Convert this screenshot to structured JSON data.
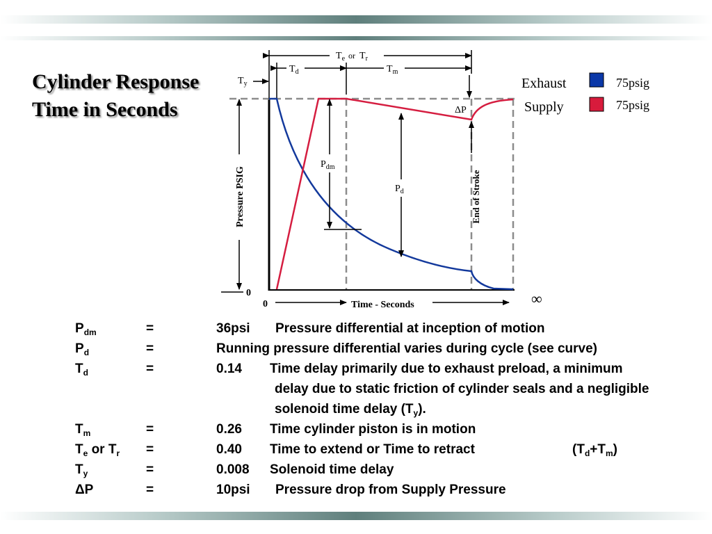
{
  "title": {
    "line1": "Cylinder Response",
    "line2": "Time in Seconds"
  },
  "diagram": {
    "legend": [
      {
        "label": "Exhaust",
        "value": "75psig",
        "color": "#0b38a8"
      },
      {
        "label": "Supply",
        "value": "75psig",
        "color": "#d81b3c"
      }
    ],
    "y_axis_label": "Pressure PSIG",
    "x_axis_label": "Time - Seconds",
    "origin_y": "0",
    "origin_x": "0",
    "infinity": "∞",
    "end_of_stroke": "End of Stroke",
    "te": "T",
    "te_sub": "e",
    "or": "or",
    "tr": "T",
    "tr_sub": "r",
    "td": "T",
    "td_sub": "d",
    "tm": "T",
    "tm_sub": "m",
    "ty": "T",
    "ty_sub": "y",
    "pdm": "P",
    "pdm_sub": "dm",
    "pd": "P",
    "pd_sub": "d",
    "delta_p": "ΔP"
  },
  "definitions": [
    {
      "sym": "P",
      "sub": "dm",
      "eq": "=",
      "val": "36psi",
      "desc": "Pressure differential at inception of motion",
      "desc_offset": 288
    },
    {
      "sym": "P",
      "sub": "d",
      "eq": "=",
      "val": "",
      "desc": "Running pressure differential varies during cycle (see curve)",
      "desc_offset": 203
    },
    {
      "sym": "T",
      "sub": "d",
      "eq": "=",
      "val": "0.14",
      "desc": "Time delay primarily due to exhaust preload, a minimum",
      "desc_offset": 280
    },
    {
      "cont": true,
      "desc": "delay due to static friction of cylinder seals and a negligible",
      "desc_offset": 287
    },
    {
      "cont": true,
      "desc": "solenoid time delay (T",
      "desc_sub": "y",
      "desc_tail": ").",
      "desc_offset": 287
    },
    {
      "sym": "T",
      "sub": "m",
      "eq": "=",
      "val": "0.26",
      "desc": "Time cylinder piston is in motion",
      "desc_offset": 280
    },
    {
      "sym": "T",
      "sub": "e",
      "sym_mid": " or T",
      "sub2": "r",
      "eq": "=",
      "val": "0.40",
      "desc": "Time to extend or Time to retract",
      "desc_offset": 280,
      "extra": "(T",
      "extra_sub1": "d",
      "extra_mid": "+T",
      "extra_sub2": "m",
      "extra_tail": ")"
    },
    {
      "sym": "T",
      "sub": "y",
      "eq": "=",
      "val": "0.008",
      "desc": "Solenoid time delay",
      "desc_offset": 280
    },
    {
      "sym": "ΔP",
      "sub": "",
      "eq": "=",
      "val": "10psi",
      "desc": "Pressure drop from Supply Pressure",
      "desc_offset": 288
    }
  ]
}
